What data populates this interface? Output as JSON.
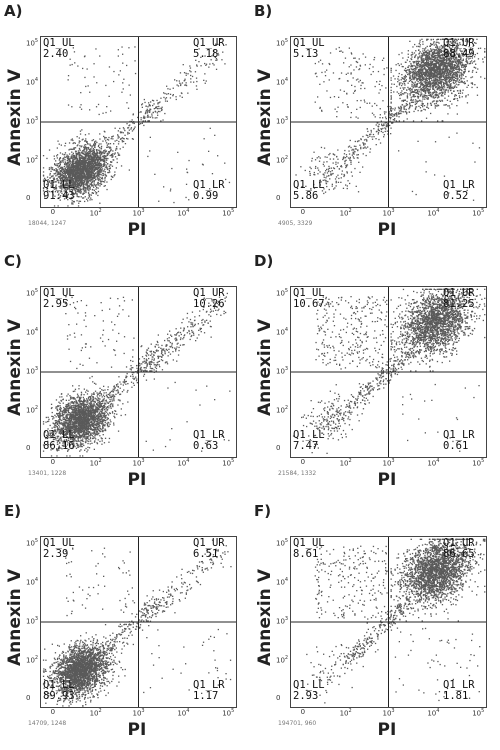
{
  "chart_data": [
    {
      "type": "scatter",
      "panel": "A)",
      "xlabel": "PI",
      "ylabel": "Annexin V",
      "xscale": "log",
      "yscale": "log",
      "quadrants": {
        "UL": {
          "label": "Q1_UL",
          "value": "2.40"
        },
        "UR": {
          "label": "Q1_UR",
          "value": "5.18"
        },
        "LL": {
          "label": "Q1_LL",
          "value": "91.43"
        },
        "LR": {
          "label": "Q1_LR",
          "value": "0.99"
        }
      },
      "footer": "18044, 1247",
      "gate": {
        "x": 1000,
        "y": 1000
      }
    },
    {
      "type": "scatter",
      "panel": "B)",
      "xlabel": "PI",
      "ylabel": "Annexin V",
      "xscale": "log",
      "yscale": "log",
      "quadrants": {
        "UL": {
          "label": "Q1_UL",
          "value": "5.13"
        },
        "UR": {
          "label": "Q1_UR",
          "value": "88.49"
        },
        "LL": {
          "label": "Q1_LL",
          "value": "5.86"
        },
        "LR": {
          "label": "Q1_LR",
          "value": "0.52"
        }
      },
      "footer": "4905, 3329",
      "gate": {
        "x": 1000,
        "y": 1000
      }
    },
    {
      "type": "scatter",
      "panel": "C)",
      "xlabel": "PI",
      "ylabel": "Annexin V",
      "xscale": "log",
      "yscale": "log",
      "quadrants": {
        "UL": {
          "label": "Q1_UL",
          "value": "2.95"
        },
        "UR": {
          "label": "Q1_UR",
          "value": "10.26"
        },
        "LL": {
          "label": "Q1_LL",
          "value": "86.16"
        },
        "LR": {
          "label": "Q1_LR",
          "value": "0.63"
        }
      },
      "footer": "13401, 1228",
      "gate": {
        "x": 1000,
        "y": 1000
      }
    },
    {
      "type": "scatter",
      "panel": "D)",
      "xlabel": "PI",
      "ylabel": "Annexin V",
      "xscale": "log",
      "yscale": "log",
      "quadrants": {
        "UL": {
          "label": "Q1_UL",
          "value": "10.67"
        },
        "UR": {
          "label": "Q1_UR",
          "value": "81.25"
        },
        "LL": {
          "label": "Q1_LL",
          "value": "7.47"
        },
        "LR": {
          "label": "Q1_LR",
          "value": "0.61"
        }
      },
      "footer": "21584, 1332",
      "gate": {
        "x": 1000,
        "y": 1000
      }
    },
    {
      "type": "scatter",
      "panel": "E)",
      "xlabel": "PI",
      "ylabel": "Annexin V",
      "xscale": "log",
      "yscale": "log",
      "quadrants": {
        "UL": {
          "label": "Q1_UL",
          "value": "2.39"
        },
        "UR": {
          "label": "Q1_UR",
          "value": "6.51"
        },
        "LL": {
          "label": "Q1_LL",
          "value": "89.93"
        },
        "LR": {
          "label": "Q1_LR",
          "value": "1.17"
        }
      },
      "footer": "14709, 1248",
      "gate": {
        "x": 1000,
        "y": 1000
      }
    },
    {
      "type": "scatter",
      "panel": "F)",
      "xlabel": "PI",
      "ylabel": "Annexin V",
      "xscale": "log",
      "yscale": "log",
      "quadrants": {
        "UL": {
          "label": "Q1_UL",
          "value": "8.61"
        },
        "UR": {
          "label": "Q1_UR",
          "value": "86.65"
        },
        "LL": {
          "label": "Q1_LL",
          "value": "2.93"
        },
        "LR": {
          "label": "Q1_LR",
          "value": "1.81"
        }
      },
      "footer": "194701, 960",
      "gate": {
        "x": 1000,
        "y": 1000
      }
    }
  ],
  "axis_ticks": {
    "x": [
      {
        "base": "0"
      },
      {
        "base": "10",
        "exp": "2"
      },
      {
        "base": "10",
        "exp": "3"
      },
      {
        "base": "10",
        "exp": "4"
      },
      {
        "base": "10",
        "exp": "5"
      }
    ],
    "y": [
      {
        "base": "10",
        "exp": "5"
      },
      {
        "base": "10",
        "exp": "4"
      },
      {
        "base": "10",
        "exp": "3"
      },
      {
        "base": "10",
        "exp": "2"
      },
      {
        "base": "0"
      }
    ]
  },
  "colors": {
    "dots": "#5a5a5a",
    "axes": "#444444",
    "gate": "#222222"
  }
}
